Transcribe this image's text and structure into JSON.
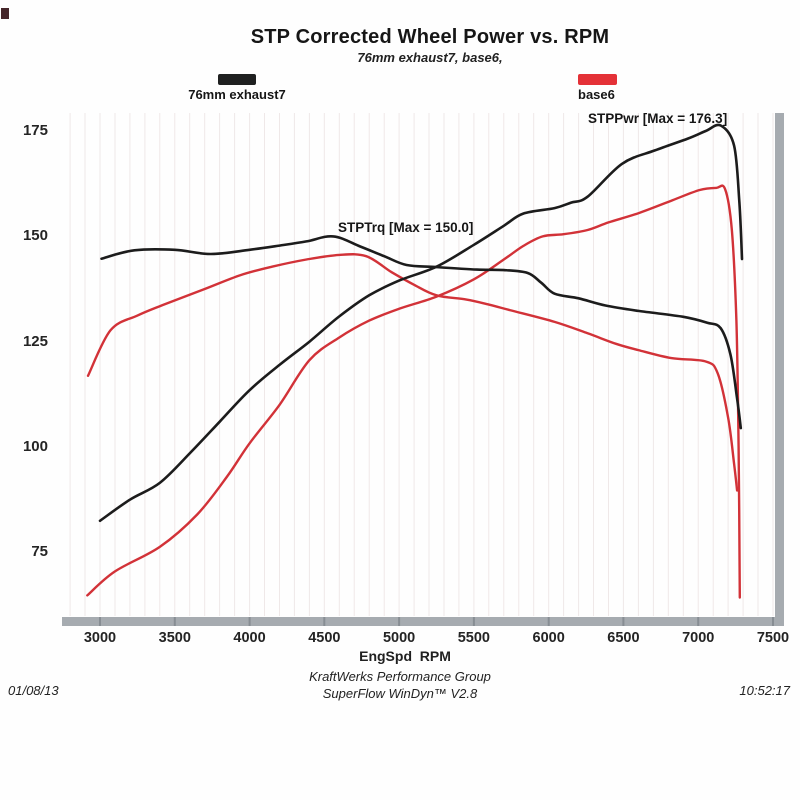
{
  "page": {
    "title": "STP Corrected Wheel Power vs. RPM",
    "subtitle": "76mm exhaust7, base6,"
  },
  "legend": [
    {
      "label": "76mm exhaust7",
      "color": "#1f2020"
    },
    {
      "label": "base6",
      "color": "#e43137"
    }
  ],
  "annotations": {
    "torque_max": "STPTrq [Max = 150.0]",
    "power_max": "STPPwr [Max = 176.3]"
  },
  "footer": {
    "date": "01/08/13",
    "org": "KraftWerks Performance Group",
    "software": "SuperFlow WinDyn™ V2.8",
    "time": "10:52:17"
  },
  "colors": {
    "black_curve": "#1c1c1c",
    "red_curve": "#d23238",
    "axis_bar": "#a6abb0",
    "axis_tick": "#878d93",
    "grid": "#efe8e8"
  },
  "chart_data": {
    "type": "line",
    "title": "STP Corrected Wheel Power vs. RPM",
    "subtitle": "76mm exhaust7, base6,",
    "xlabel": "EngSpd  RPM",
    "ylabel": "",
    "x_ticks": [
      3000,
      3500,
      4000,
      4500,
      5000,
      5500,
      6000,
      6500,
      7000,
      7500
    ],
    "y_ticks": [
      175,
      150,
      125,
      100,
      75
    ],
    "xlim": [
      2746,
      7574
    ],
    "ylim": [
      60,
      179
    ],
    "grid": "faint vertical lines every 100 RPM",
    "legend_position": "top",
    "series": [
      {
        "name": "base6 — STPTrq",
        "color": "#d23238",
        "width": 2.4,
        "points": [
          [
            2920,
            116.9
          ],
          [
            3070,
            127.7
          ],
          [
            3250,
            131.2
          ],
          [
            3420,
            133.7
          ],
          [
            3700,
            137.5
          ],
          [
            3940,
            140.8
          ],
          [
            4150,
            142.8
          ],
          [
            4380,
            144.5
          ],
          [
            4600,
            145.6
          ],
          [
            4780,
            145.3
          ],
          [
            4950,
            141.5
          ],
          [
            5100,
            138.5
          ],
          [
            5250,
            136.0
          ],
          [
            5450,
            135.0
          ],
          [
            5600,
            133.8
          ],
          [
            5740,
            132.5
          ],
          [
            6040,
            129.7
          ],
          [
            6260,
            127.0
          ],
          [
            6450,
            124.5
          ],
          [
            6600,
            123.0
          ],
          [
            6820,
            121.1
          ],
          [
            7050,
            120.3
          ],
          [
            7130,
            117.5
          ],
          [
            7200,
            107.0
          ],
          [
            7240,
            96.0
          ],
          [
            7260,
            89.7
          ]
        ]
      },
      {
        "name": "base6 — STPPwr",
        "color": "#d23238",
        "width": 2.4,
        "max": 161.5,
        "points": [
          [
            2915,
            64.8
          ],
          [
            3100,
            70.5
          ],
          [
            3400,
            76.3
          ],
          [
            3650,
            84.0
          ],
          [
            3850,
            93.0
          ],
          [
            4000,
            100.9
          ],
          [
            4200,
            110.0
          ],
          [
            4400,
            120.6
          ],
          [
            4600,
            126.0
          ],
          [
            4800,
            130.0
          ],
          [
            5000,
            132.8
          ],
          [
            5250,
            135.7
          ],
          [
            5500,
            139.8
          ],
          [
            5700,
            144.5
          ],
          [
            5830,
            147.7
          ],
          [
            5960,
            150.0
          ],
          [
            6100,
            150.5
          ],
          [
            6260,
            151.5
          ],
          [
            6400,
            153.3
          ],
          [
            6600,
            155.5
          ],
          [
            6830,
            158.6
          ],
          [
            7010,
            161.0
          ],
          [
            7120,
            161.5
          ],
          [
            7180,
            161.2
          ],
          [
            7225,
            151.4
          ],
          [
            7255,
            130.0
          ],
          [
            7270,
            100.0
          ],
          [
            7278,
            64.3
          ]
        ]
      },
      {
        "name": "76mm exhaust7 — STPTrq",
        "color": "#1c1c1c",
        "width": 2.6,
        "max": 150.0,
        "points": [
          [
            3010,
            144.7
          ],
          [
            3230,
            146.7
          ],
          [
            3500,
            146.8
          ],
          [
            3740,
            145.8
          ],
          [
            4000,
            146.8
          ],
          [
            4200,
            147.8
          ],
          [
            4380,
            148.8
          ],
          [
            4560,
            150.0
          ],
          [
            4740,
            147.6
          ],
          [
            4900,
            145.3
          ],
          [
            5050,
            143.2
          ],
          [
            5250,
            142.7
          ],
          [
            5520,
            142.1
          ],
          [
            5700,
            142.0
          ],
          [
            5860,
            141.3
          ],
          [
            5950,
            139.0
          ],
          [
            6040,
            136.4
          ],
          [
            6200,
            135.3
          ],
          [
            6380,
            133.6
          ],
          [
            6600,
            132.3
          ],
          [
            6900,
            130.9
          ],
          [
            7060,
            129.5
          ],
          [
            7150,
            128.2
          ],
          [
            7215,
            122.0
          ],
          [
            7258,
            112.0
          ],
          [
            7285,
            104.5
          ]
        ]
      },
      {
        "name": "76mm exhaust7 — STPPwr",
        "color": "#1c1c1c",
        "width": 2.6,
        "max": 176.3,
        "points": [
          [
            3000,
            82.5
          ],
          [
            3200,
            87.5
          ],
          [
            3400,
            91.5
          ],
          [
            3600,
            98.5
          ],
          [
            3800,
            106.0
          ],
          [
            4000,
            113.5
          ],
          [
            4200,
            119.5
          ],
          [
            4400,
            125.0
          ],
          [
            4600,
            131.0
          ],
          [
            4800,
            136.0
          ],
          [
            5000,
            139.5
          ],
          [
            5250,
            142.8
          ],
          [
            5500,
            148.0
          ],
          [
            5700,
            152.5
          ],
          [
            5830,
            155.4
          ],
          [
            6040,
            156.7
          ],
          [
            6150,
            158.0
          ],
          [
            6260,
            159.4
          ],
          [
            6490,
            167.2
          ],
          [
            6710,
            170.4
          ],
          [
            6930,
            173.2
          ],
          [
            7050,
            175.0
          ],
          [
            7150,
            176.3
          ],
          [
            7240,
            171.5
          ],
          [
            7275,
            158.0
          ],
          [
            7293,
            144.6
          ]
        ]
      }
    ]
  }
}
